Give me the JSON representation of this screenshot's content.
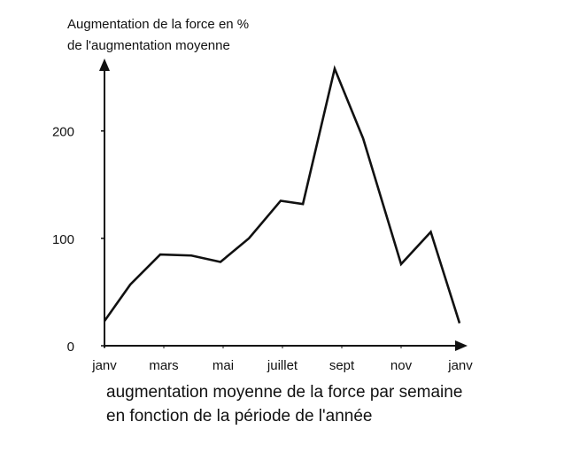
{
  "chart_data": {
    "type": "line",
    "ylabel": [
      "Augmentation de la force en %",
      "de l'augmentation moyenne"
    ],
    "xlabel": [
      "augmentation moyenne de la force par semaine",
      "en fonction de la période de l'année"
    ],
    "x": [
      0,
      0.87,
      1.88,
      2.93,
      3.91,
      4.87,
      5.94,
      6.69,
      7.76,
      8.72,
      10.0,
      11.0,
      11.97
    ],
    "series": [
      {
        "color": "#111111",
        "values": [
          23,
          57,
          85,
          84,
          78,
          100,
          135,
          132,
          258,
          193,
          76,
          106,
          21
        ]
      }
    ],
    "xlim": [
      0,
      12
    ],
    "xticks": [
      {
        "value": 0,
        "label": "janv"
      },
      {
        "value": 2,
        "label": "mars"
      },
      {
        "value": 4,
        "label": "mai"
      },
      {
        "value": 6,
        "label": "juillet"
      },
      {
        "value": 8,
        "label": "sept"
      },
      {
        "value": 10,
        "label": "nov"
      },
      {
        "value": 12,
        "label": "janv"
      }
    ],
    "ylim": [
      0,
      265
    ],
    "yticks": [
      0,
      100,
      200
    ]
  }
}
